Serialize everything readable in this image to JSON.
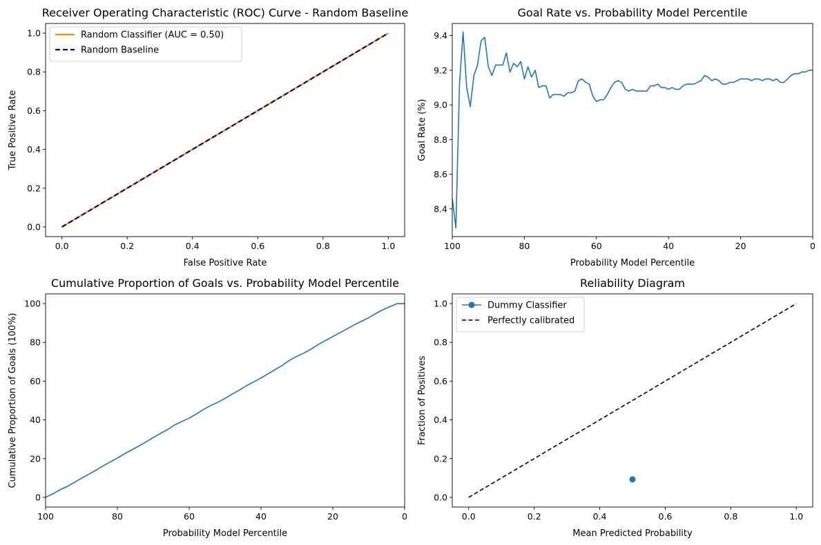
{
  "chart_data": [
    {
      "type": "line",
      "title": "Receiver Operating Characteristic (ROC) Curve - Random Baseline",
      "xlabel": "False Positive Rate",
      "ylabel": "True Positive Rate",
      "xlim": [
        -0.05,
        1.05
      ],
      "ylim": [
        -0.05,
        1.05
      ],
      "xticks": [
        0.0,
        0.2,
        0.4,
        0.6,
        0.8,
        1.0
      ],
      "xtick_labels": [
        "0.0",
        "0.2",
        "0.4",
        "0.6",
        "0.8",
        "1.0"
      ],
      "yticks": [
        0.0,
        0.2,
        0.4,
        0.6,
        0.8,
        1.0
      ],
      "ytick_labels": [
        "0.0",
        "0.2",
        "0.4",
        "0.6",
        "0.8",
        "1.0"
      ],
      "legend": "upper-left",
      "series": [
        {
          "name": "Random Classifier (AUC = 0.50)",
          "color": "#ff8c00",
          "style": "solid",
          "x": [
            0,
            1
          ],
          "y": [
            0,
            1
          ]
        },
        {
          "name": "Random Baseline",
          "color": "#000080",
          "style": "dashed",
          "x": [
            0,
            1
          ],
          "y": [
            0,
            1
          ]
        }
      ]
    },
    {
      "type": "line",
      "title": "Goal Rate vs. Probability Model Percentile",
      "xlabel": "Probability Model Percentile",
      "ylabel": "Goal Rate (%)",
      "xlim": [
        100,
        0
      ],
      "ylim": [
        8.24,
        9.47
      ],
      "xticks": [
        100,
        80,
        60,
        40,
        20,
        0
      ],
      "xtick_labels": [
        "100",
        "80",
        "60",
        "40",
        "20",
        "0"
      ],
      "yticks": [
        8.4,
        8.6,
        8.8,
        9.0,
        9.2,
        9.4
      ],
      "ytick_labels": [
        "8.4",
        "8.6",
        "8.8",
        "9.0",
        "9.2",
        "9.4"
      ],
      "series": [
        {
          "color": "#1f77b4",
          "x": [
            100,
            99,
            98,
            97,
            96,
            95,
            94,
            93,
            92,
            91,
            90,
            89,
            88,
            87,
            86,
            85,
            84,
            83,
            82,
            81,
            80,
            79,
            78,
            77,
            76,
            75,
            74,
            73,
            72,
            71,
            70,
            69,
            68,
            67,
            66,
            65,
            64,
            63,
            62,
            61,
            60,
            59,
            58,
            57,
            56,
            55,
            54,
            53,
            52,
            51,
            50,
            49,
            48,
            47,
            46,
            45,
            44,
            43,
            42,
            41,
            40,
            39,
            38,
            37,
            36,
            35,
            34,
            33,
            32,
            31,
            30,
            29,
            28,
            27,
            26,
            25,
            24,
            23,
            22,
            21,
            20,
            19,
            18,
            17,
            16,
            15,
            14,
            13,
            12,
            11,
            10,
            9,
            8,
            7,
            6,
            5,
            4,
            3,
            2,
            1,
            0
          ],
          "y": [
            8.46,
            8.29,
            9.12,
            9.42,
            9.1,
            8.99,
            9.17,
            9.23,
            9.37,
            9.39,
            9.22,
            9.17,
            9.23,
            9.23,
            9.23,
            9.3,
            9.19,
            9.24,
            9.22,
            9.25,
            9.15,
            9.22,
            9.16,
            9.2,
            9.1,
            9.11,
            9.11,
            9.04,
            9.06,
            9.06,
            9.06,
            9.05,
            9.07,
            9.07,
            9.08,
            9.14,
            9.15,
            9.13,
            9.12,
            9.05,
            9.02,
            9.03,
            9.03,
            9.06,
            9.1,
            9.13,
            9.14,
            9.13,
            9.09,
            9.08,
            9.09,
            9.08,
            9.08,
            9.08,
            9.08,
            9.11,
            9.11,
            9.12,
            9.1,
            9.1,
            9.09,
            9.1,
            9.09,
            9.09,
            9.11,
            9.12,
            9.12,
            9.12,
            9.13,
            9.14,
            9.17,
            9.16,
            9.14,
            9.15,
            9.14,
            9.12,
            9.12,
            9.13,
            9.13,
            9.14,
            9.15,
            9.15,
            9.15,
            9.14,
            9.15,
            9.15,
            9.14,
            9.15,
            9.15,
            9.14,
            9.15,
            9.13,
            9.13,
            9.15,
            9.17,
            9.18,
            9.18,
            9.19,
            9.19,
            9.2,
            9.2
          ]
        }
      ]
    },
    {
      "type": "line",
      "title": "Cumulative Proportion of Goals vs. Probability Model Percentile",
      "xlabel": "Probability Model Percentile",
      "ylabel": "Cumulative Proportion of Goals (100%)",
      "xlim": [
        100,
        0
      ],
      "ylim": [
        -5,
        105
      ],
      "xticks": [
        100,
        80,
        60,
        40,
        20,
        0
      ],
      "xtick_labels": [
        "100",
        "80",
        "60",
        "40",
        "20",
        "0"
      ],
      "yticks": [
        0,
        20,
        40,
        60,
        80,
        100
      ],
      "ytick_labels": [
        "0",
        "20",
        "40",
        "60",
        "80",
        "100"
      ],
      "series": [
        {
          "color": "#1f77b4",
          "x": [
            100,
            98,
            96,
            94,
            92,
            90,
            88,
            86,
            84,
            82,
            80,
            78,
            76,
            74,
            72,
            70,
            68,
            66,
            64,
            62,
            60,
            58,
            56,
            54,
            52,
            50,
            48,
            46,
            44,
            42,
            40,
            38,
            36,
            34,
            32,
            30,
            28,
            26,
            24,
            22,
            20,
            18,
            16,
            14,
            12,
            10,
            8,
            6,
            4,
            2,
            0
          ],
          "y": [
            0,
            1.8,
            3.9,
            5.6,
            7.7,
            9.9,
            11.9,
            14.0,
            16.2,
            18.3,
            20.3,
            22.5,
            24.5,
            26.5,
            28.6,
            30.9,
            33.0,
            35.0,
            37.4,
            39.2,
            40.9,
            43.0,
            45.4,
            47.4,
            49.1,
            51.1,
            53.3,
            55.4,
            57.7,
            59.6,
            61.6,
            63.8,
            66.0,
            68.2,
            70.8,
            72.8,
            74.5,
            76.6,
            78.9,
            81.0,
            83.0,
            85.0,
            87.0,
            89.0,
            90.9,
            92.7,
            94.9,
            96.9,
            98.5,
            100,
            100
          ]
        }
      ]
    },
    {
      "type": "line",
      "title": "Reliability Diagram",
      "xlabel": "Mean Predicted Probability",
      "ylabel": "Fraction of Positives",
      "xlim": [
        -0.05,
        1.05
      ],
      "ylim": [
        -0.05,
        1.05
      ],
      "xticks": [
        0.0,
        0.2,
        0.4,
        0.6,
        0.8,
        1.0
      ],
      "xtick_labels": [
        "0.0",
        "0.2",
        "0.4",
        "0.6",
        "0.8",
        "1.0"
      ],
      "yticks": [
        0.0,
        0.2,
        0.4,
        0.6,
        0.8,
        1.0
      ],
      "ytick_labels": [
        "0.0",
        "0.2",
        "0.4",
        "0.6",
        "0.8",
        "1.0"
      ],
      "legend": "upper-left",
      "series": [
        {
          "name": "Dummy Classifier",
          "color": "#1f77b4",
          "style": "solid",
          "marker": "circle",
          "x": [
            0.5
          ],
          "y": [
            0.093
          ]
        },
        {
          "name": "Perfectly calibrated",
          "color": "#000000",
          "style": "dashed",
          "x": [
            0,
            1
          ],
          "y": [
            0,
            1
          ]
        }
      ]
    }
  ]
}
